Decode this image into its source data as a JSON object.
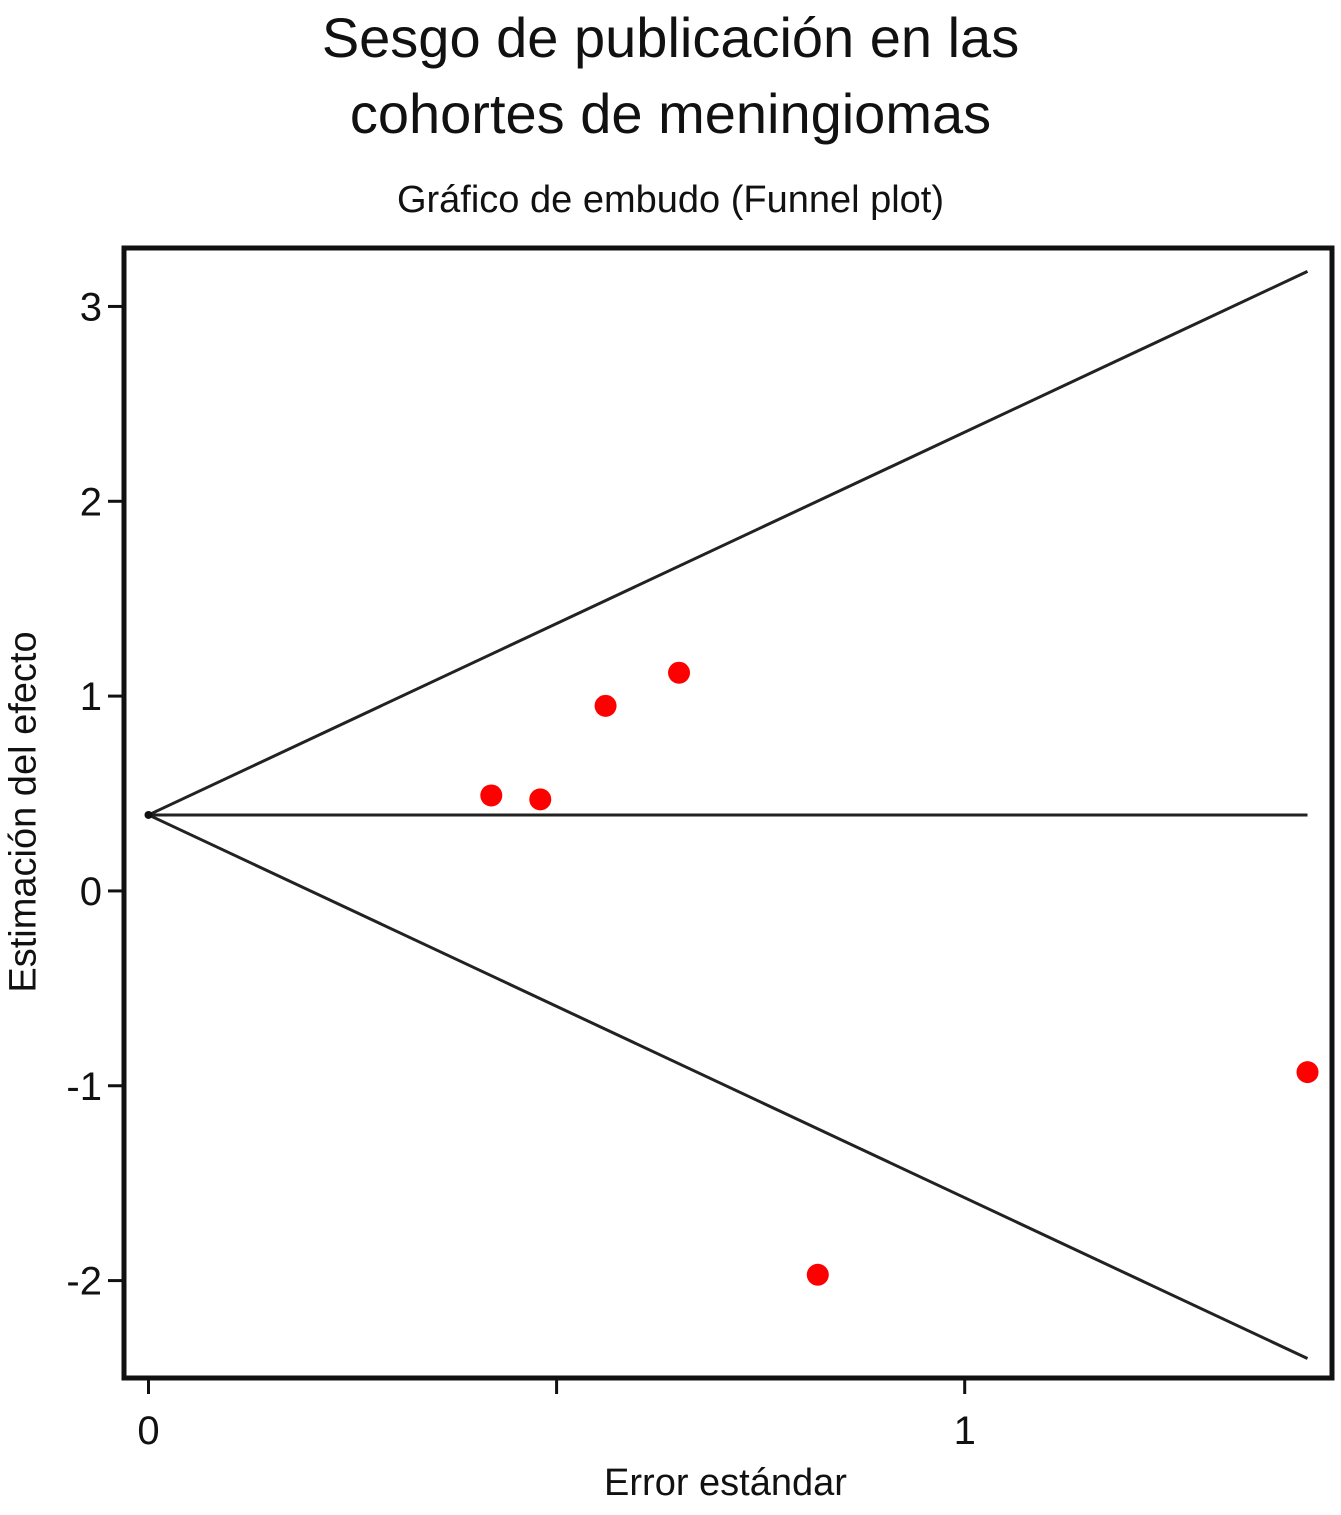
{
  "chart_data": {
    "type": "scatter",
    "title": "Sesgo de publicación en las cohortes de meningiomas",
    "title_lines": [
      "Sesgo de publicación en las",
      "cohortes de meningiomas"
    ],
    "subtitle": "Gráfico de embudo (Funnel plot)",
    "xlabel": "Error estándar",
    "ylabel": "Estimación del efecto",
    "xlim": [
      -0.03,
      1.45
    ],
    "ylim": [
      -2.5,
      3.3
    ],
    "x_ticks": [
      0,
      0.5,
      1
    ],
    "x_tick_labels": [
      "0",
      "",
      "1"
    ],
    "y_ticks": [
      -2,
      -1,
      0,
      1,
      2,
      3
    ],
    "y_tick_labels": [
      "-2",
      "-1",
      "0",
      "1",
      "2",
      "3"
    ],
    "grid": false,
    "pooled_estimate": 0.39,
    "funnel_max_se": 1.42,
    "funnel_upper_end": 3.18,
    "funnel_lower_end": -2.4,
    "marker_color": "#ff0000",
    "line_color": "#222222",
    "series": [
      {
        "x": [
          0.42,
          0.48,
          0.56,
          0.65,
          0.82,
          1.42
        ],
        "y": [
          0.49,
          0.47,
          0.95,
          1.12,
          -1.97,
          -0.93
        ]
      }
    ]
  }
}
